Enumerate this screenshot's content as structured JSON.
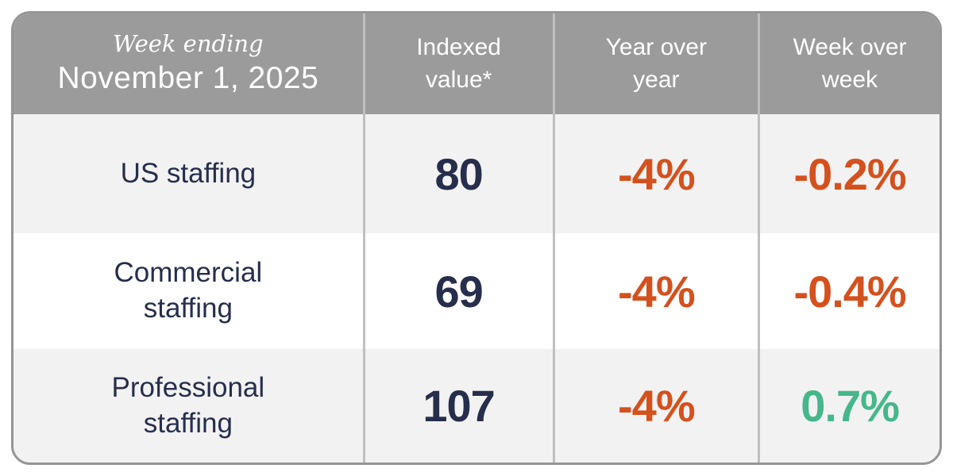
{
  "header": {
    "week_ending_label": "Week ending",
    "date": "November 1, 2025",
    "col_indexed": "Indexed value*",
    "col_yoy": "Year over year",
    "col_wow": "Week over week"
  },
  "rows": [
    {
      "label": "US staffing",
      "indexed_value": "80",
      "yoy": "-4%",
      "wow": "-0.2%",
      "wow_positive": false
    },
    {
      "label": "Commercial staffing",
      "indexed_value": "69",
      "yoy": "-4%",
      "wow": "-0.4%",
      "wow_positive": false
    },
    {
      "label": "Professional staffing",
      "indexed_value": "107",
      "yoy": "-4%",
      "wow": "0.7%",
      "wow_positive": true
    }
  ],
  "colors": {
    "header_bg": "#9B9B9B",
    "row_alt_bg": "#F2F2F2",
    "row_bg": "#FFFFFF",
    "navy": "#262E4C",
    "negative": "#D4511E",
    "positive": "#45B78A",
    "divider": "#BFBFBF",
    "border": "#959595",
    "header_text": "#FFFFFF"
  },
  "chart_data": {
    "type": "table",
    "title": "Week ending November 1, 2025",
    "columns": [
      "",
      "Indexed value*",
      "Year over year",
      "Week over week"
    ],
    "rows": [
      [
        "US staffing",
        80,
        "-4%",
        "-0.2%"
      ],
      [
        "Commercial staffing",
        69,
        "-4%",
        "-0.4%"
      ],
      [
        "Professional staffing",
        107,
        "-4%",
        "0.7%"
      ]
    ],
    "notes": "Negative values shown in orange (#D4511E); positive values shown in green (#45B78A)."
  }
}
